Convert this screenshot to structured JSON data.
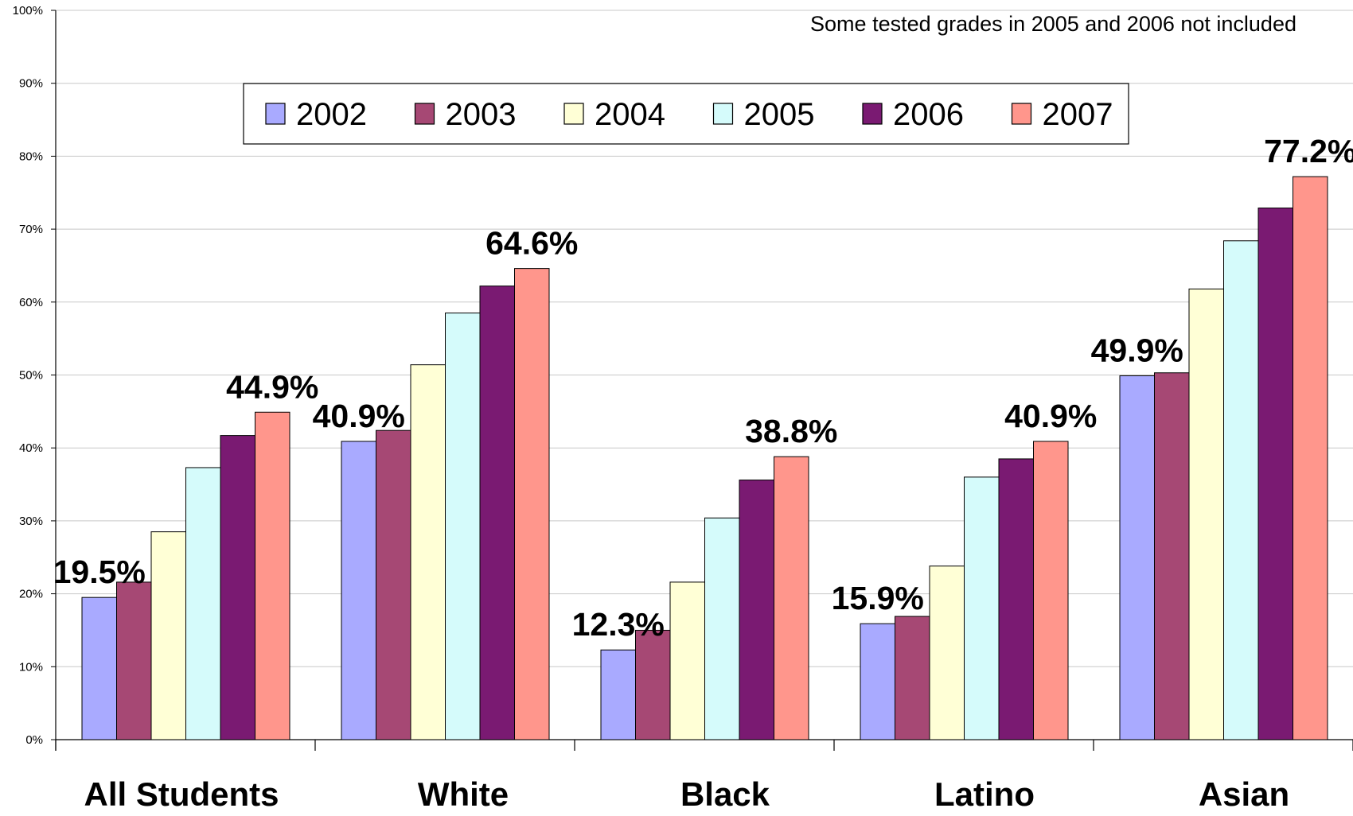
{
  "chart_data": {
    "type": "bar",
    "title": "",
    "note": "Some tested grades in 2005 and 2006 not included",
    "xlabel": "",
    "ylabel": "",
    "ylim": [
      0,
      100
    ],
    "y_ticks": [
      "0%",
      "10%",
      "20%",
      "30%",
      "40%",
      "50%",
      "60%",
      "70%",
      "80%",
      "90%",
      "100%"
    ],
    "grid": true,
    "legend_position": "top",
    "categories": [
      "All Students",
      "White",
      "Black",
      "Latino",
      "Asian"
    ],
    "series": [
      {
        "name": "2002",
        "color": "#a9aaff",
        "values": [
          19.5,
          40.9,
          12.3,
          15.9,
          49.9
        ]
      },
      {
        "name": "2003",
        "color": "#a64874",
        "values": [
          21.6,
          42.4,
          15.0,
          16.9,
          50.3
        ]
      },
      {
        "name": "2004",
        "color": "#ffffd6",
        "values": [
          28.5,
          51.4,
          21.6,
          23.8,
          61.8
        ]
      },
      {
        "name": "2005",
        "color": "#d5fbfb",
        "values": [
          37.3,
          58.5,
          30.4,
          36.0,
          68.4
        ]
      },
      {
        "name": "2006",
        "color": "#7a1a72",
        "values": [
          41.7,
          62.2,
          35.6,
          38.5,
          72.9
        ]
      },
      {
        "name": "2007",
        "color": "#ff968c",
        "values": [
          44.9,
          64.6,
          38.8,
          40.9,
          77.2
        ]
      }
    ],
    "data_labels": [
      {
        "category": "All Students",
        "series": "2002",
        "text": "19.5%"
      },
      {
        "category": "All Students",
        "series": "2007",
        "text": "44.9%"
      },
      {
        "category": "White",
        "series": "2002",
        "text": "40.9%"
      },
      {
        "category": "White",
        "series": "2007",
        "text": "64.6%"
      },
      {
        "category": "Black",
        "series": "2002",
        "text": "12.3%"
      },
      {
        "category": "Black",
        "series": "2007",
        "text": "38.8%"
      },
      {
        "category": "Latino",
        "series": "2002",
        "text": "15.9%"
      },
      {
        "category": "Latino",
        "series": "2007",
        "text": "40.9%"
      },
      {
        "category": "Asian",
        "series": "2002",
        "text": "49.9%"
      },
      {
        "category": "Asian",
        "series": "2007",
        "text": "77.2%"
      }
    ]
  }
}
